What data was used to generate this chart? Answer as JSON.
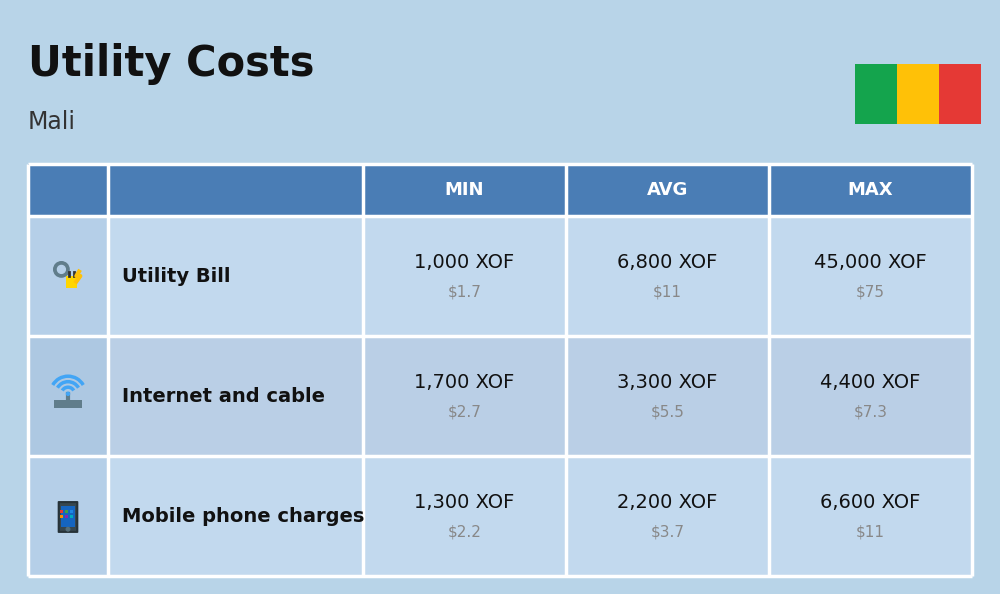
{
  "title": "Utility Costs",
  "subtitle": "Mali",
  "background_color": "#b8d4e8",
  "header_bg_color": "#4a7db5",
  "header_text_color": "#ffffff",
  "row_bg_even": "#c2d9ee",
  "row_bg_odd": "#bacfe6",
  "icon_col_bg_even": "#b5cfe8",
  "icon_col_bg_odd": "#adc8e2",
  "col_headers": [
    "MIN",
    "AVG",
    "MAX"
  ],
  "rows": [
    {
      "label": "Utility Bill",
      "min_xof": "1,000 XOF",
      "min_usd": "$1.7",
      "avg_xof": "6,800 XOF",
      "avg_usd": "$11",
      "max_xof": "45,000 XOF",
      "max_usd": "$75"
    },
    {
      "label": "Internet and cable",
      "min_xof": "1,700 XOF",
      "min_usd": "$2.7",
      "avg_xof": "3,300 XOF",
      "avg_usd": "$5.5",
      "max_xof": "4,400 XOF",
      "max_usd": "$7.3"
    },
    {
      "label": "Mobile phone charges",
      "min_xof": "1,300 XOF",
      "min_usd": "$2.2",
      "avg_xof": "2,200 XOF",
      "avg_usd": "$3.7",
      "max_xof": "6,600 XOF",
      "max_usd": "$11"
    }
  ],
  "flag_colors": [
    "#14A44D",
    "#FFC107",
    "#E53935"
  ],
  "title_fontsize": 30,
  "subtitle_fontsize": 17,
  "header_fontsize": 13,
  "cell_main_fontsize": 14,
  "cell_sub_fontsize": 11,
  "label_fontsize": 14
}
